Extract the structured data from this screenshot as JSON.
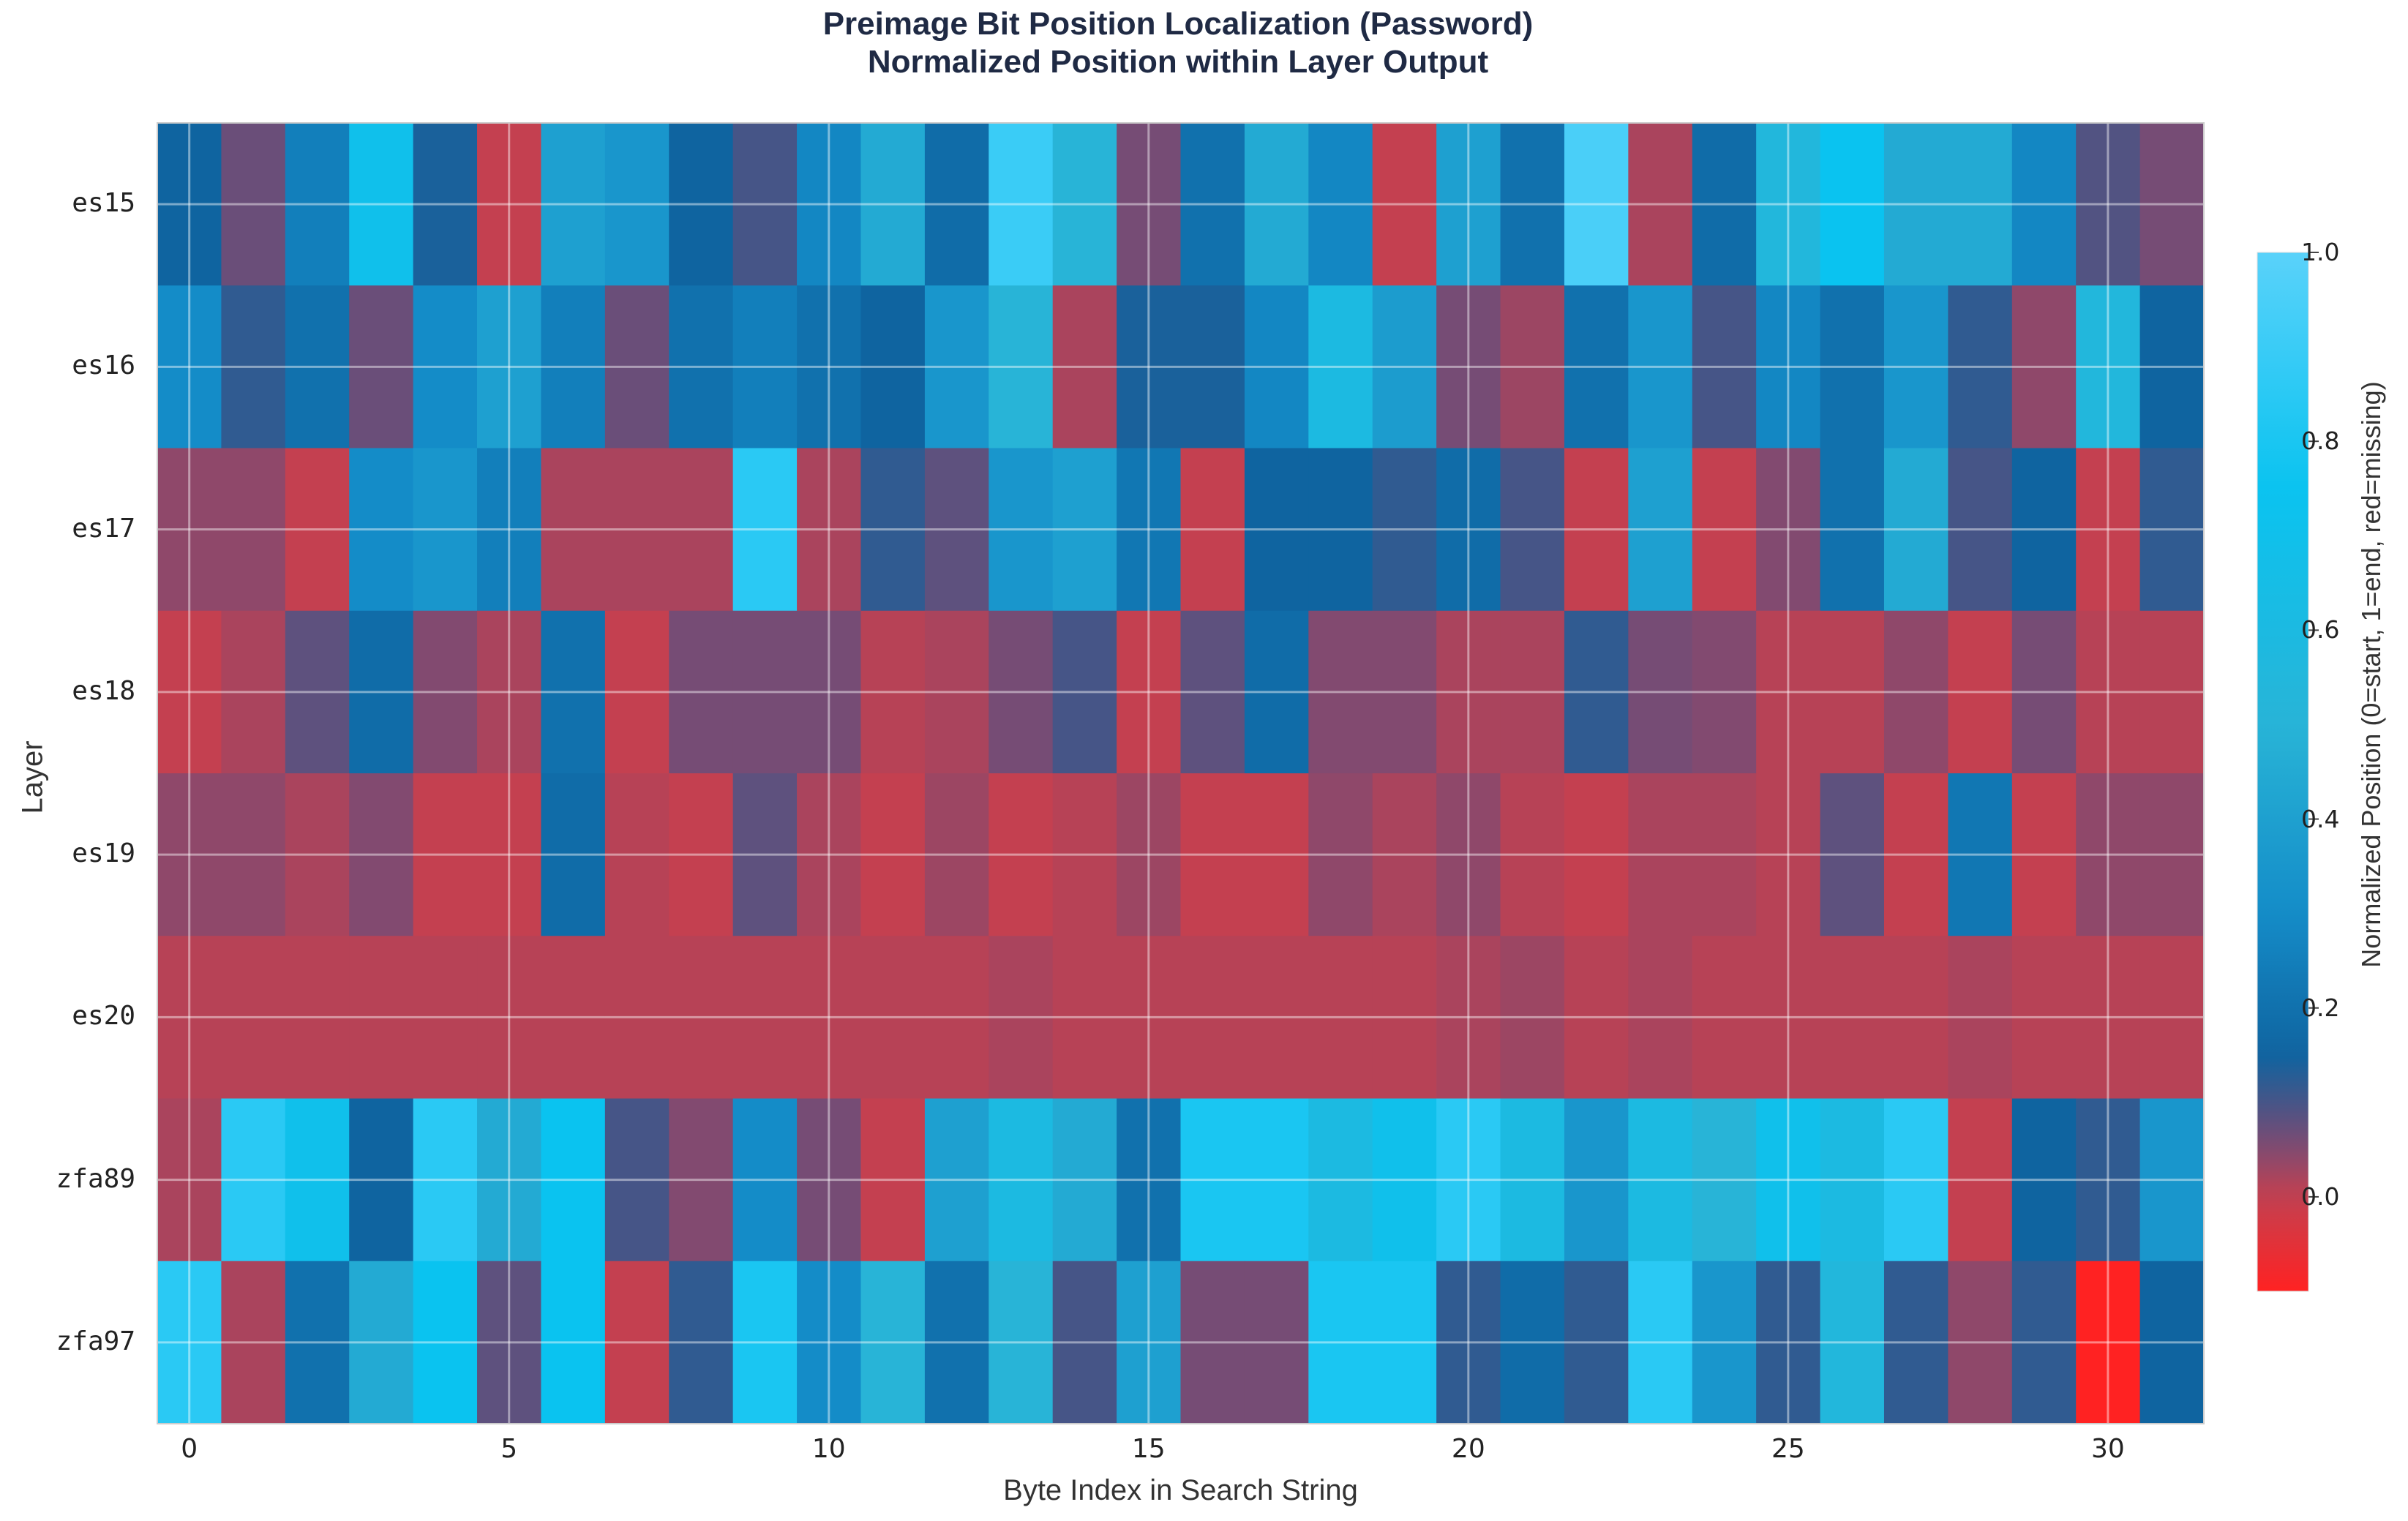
{
  "chart_data": {
    "type": "heatmap",
    "title": "Preimage Bit Position Localization (Password)",
    "subtitle": "Normalized Position within Layer Output",
    "xlabel": "Byte Index in Search String",
    "ylabel": "Layer",
    "colorbar_label": "Normalized Position (0=start, 1=end, red=missing)",
    "colorbar_range": [
      -0.1,
      1.0
    ],
    "colorbar_ticks": [
      "1.0",
      "0.8",
      "0.6",
      "0.4",
      "0.2",
      "0.0"
    ],
    "colorbar_tick_values": [
      1.0,
      0.8,
      0.6,
      0.4,
      0.2,
      0.0
    ],
    "x_ticks": [
      "0",
      "5",
      "10",
      "15",
      "20",
      "25",
      "30"
    ],
    "x_tick_values": [
      0,
      5,
      10,
      15,
      20,
      25,
      30
    ],
    "x_range": [
      -0.5,
      31.5
    ],
    "rows": [
      "es15",
      "es16",
      "es17",
      "es18",
      "es19",
      "es20",
      "zfa89",
      "zfa97"
    ],
    "values": [
      [
        0.15,
        0.07,
        0.25,
        0.7,
        0.14,
        0.0,
        0.4,
        0.35,
        0.15,
        0.1,
        0.28,
        0.45,
        0.18,
        0.9,
        0.5,
        0.06,
        0.2,
        0.45,
        0.28,
        0.0,
        0.4,
        0.2,
        0.95,
        0.02,
        0.18,
        0.55,
        0.75,
        0.45,
        0.45,
        0.28,
        0.09,
        0.06
      ],
      [
        0.3,
        0.12,
        0.2,
        0.07,
        0.3,
        0.4,
        0.25,
        0.07,
        0.2,
        0.25,
        0.2,
        0.15,
        0.35,
        0.5,
        0.02,
        0.14,
        0.14,
        0.28,
        0.6,
        0.38,
        0.06,
        0.03,
        0.2,
        0.35,
        0.1,
        0.28,
        0.2,
        0.35,
        0.12,
        0.04,
        0.55,
        0.15
      ],
      [
        0.04,
        0.04,
        0.0,
        0.3,
        0.35,
        0.25,
        0.02,
        0.02,
        0.02,
        0.85,
        0.02,
        0.12,
        0.08,
        0.35,
        0.4,
        0.22,
        0.0,
        0.15,
        0.15,
        0.12,
        0.18,
        0.1,
        0.0,
        0.4,
        0.0,
        0.05,
        0.2,
        0.45,
        0.1,
        0.15,
        0.0,
        0.12
      ],
      [
        0.0,
        0.02,
        0.08,
        0.18,
        0.05,
        0.02,
        0.2,
        0.0,
        0.06,
        0.06,
        0.06,
        0.01,
        0.02,
        0.06,
        0.1,
        0.0,
        0.08,
        0.18,
        0.05,
        0.05,
        0.02,
        0.02,
        0.12,
        0.06,
        0.05,
        0.01,
        0.01,
        0.04,
        0.0,
        0.06,
        0.01,
        0.01
      ],
      [
        0.04,
        0.04,
        0.02,
        0.05,
        0.0,
        0.0,
        0.18,
        0.01,
        0.0,
        0.08,
        0.02,
        0.0,
        0.03,
        0.0,
        0.01,
        0.03,
        0.0,
        0.0,
        0.04,
        0.02,
        0.04,
        0.01,
        0.0,
        0.02,
        0.02,
        0.01,
        0.08,
        0.0,
        0.22,
        0.0,
        0.04,
        0.04
      ],
      [
        0.01,
        0.01,
        0.01,
        0.01,
        0.01,
        0.01,
        0.01,
        0.01,
        0.01,
        0.01,
        0.01,
        0.01,
        0.01,
        0.02,
        0.01,
        0.01,
        0.01,
        0.01,
        0.01,
        0.01,
        0.02,
        0.03,
        0.01,
        0.02,
        0.01,
        0.01,
        0.01,
        0.01,
        0.02,
        0.01,
        0.01,
        0.01
      ],
      [
        0.02,
        0.85,
        0.7,
        0.15,
        0.85,
        0.45,
        0.75,
        0.1,
        0.05,
        0.3,
        0.06,
        0.0,
        0.4,
        0.6,
        0.45,
        0.2,
        0.8,
        0.8,
        0.6,
        0.7,
        0.85,
        0.6,
        0.35,
        0.6,
        0.5,
        0.7,
        0.6,
        0.85,
        0.0,
        0.15,
        0.12,
        0.35
      ],
      [
        0.85,
        0.02,
        0.2,
        0.45,
        0.75,
        0.08,
        0.75,
        0.0,
        0.12,
        0.8,
        0.3,
        0.5,
        0.2,
        0.5,
        0.1,
        0.4,
        0.06,
        0.06,
        0.8,
        0.8,
        0.12,
        0.18,
        0.12,
        0.85,
        0.35,
        0.12,
        0.55,
        0.12,
        0.04,
        0.12,
        -0.1,
        0.15
      ]
    ],
    "grid": true,
    "colorbar_position": "right"
  }
}
